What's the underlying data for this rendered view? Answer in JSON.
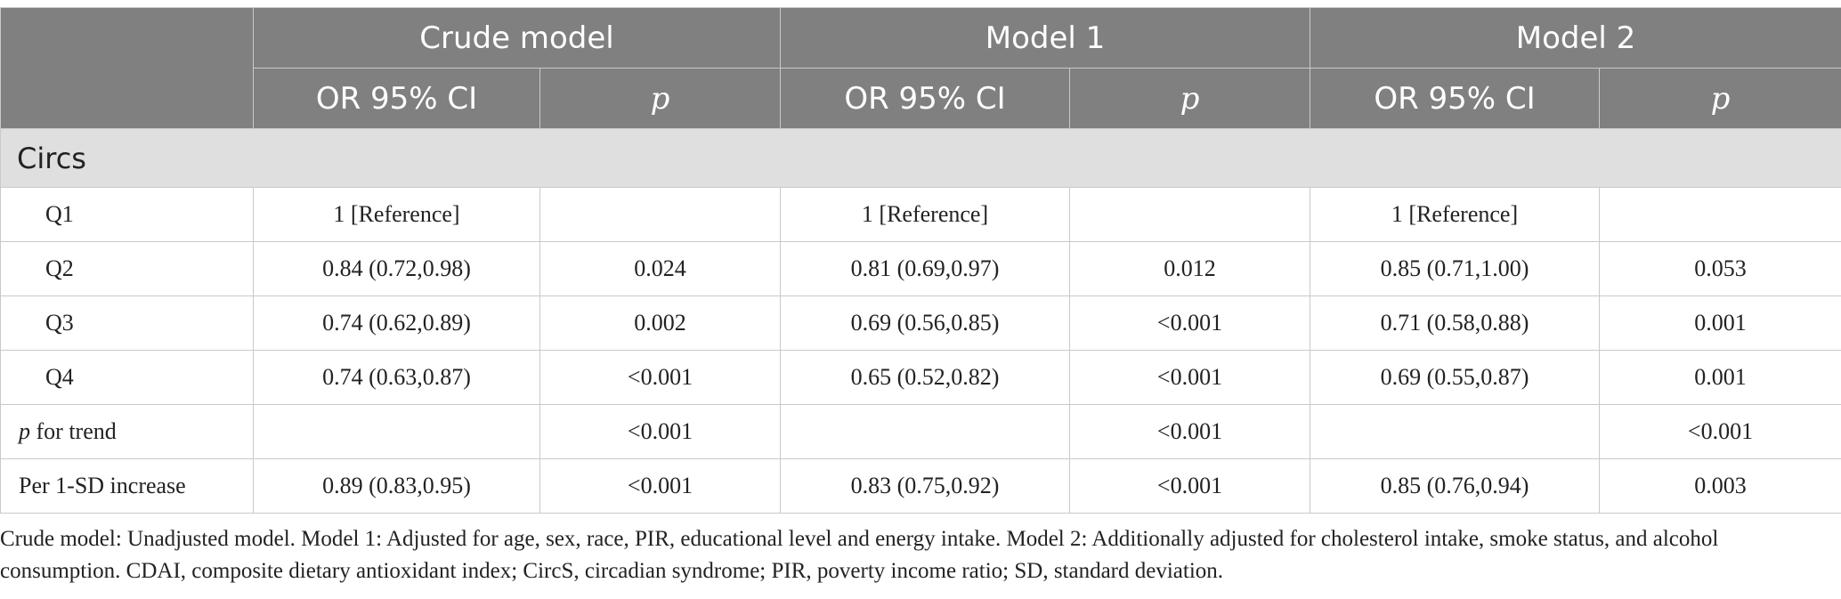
{
  "table": {
    "groups": [
      "Crude model",
      "Model 1",
      "Model 2"
    ],
    "subheaders": {
      "or_ci": "OR 95% CI",
      "p": "p"
    },
    "section": "Circs",
    "rows": [
      {
        "label": "Q1",
        "cells": [
          "1 [Reference]",
          "",
          "1 [Reference]",
          "",
          "1 [Reference]",
          ""
        ]
      },
      {
        "label": "Q2",
        "cells": [
          "0.84 (0.72,0.98)",
          "0.024",
          "0.81 (0.69,0.97)",
          "0.012",
          "0.85 (0.71,1.00)",
          "0.053"
        ]
      },
      {
        "label": "Q3",
        "cells": [
          "0.74 (0.62,0.89)",
          "0.002",
          "0.69 (0.56,0.85)",
          "<0.001",
          "0.71 (0.58,0.88)",
          "0.001"
        ]
      },
      {
        "label": "Q4",
        "cells": [
          "0.74 (0.63,0.87)",
          "<0.001",
          "0.65 (0.52,0.82)",
          "<0.001",
          "0.69 (0.55,0.87)",
          "0.001"
        ]
      },
      {
        "label_ital": "p",
        "label_rest": " for trend",
        "cells": [
          "",
          "<0.001",
          "",
          "<0.001",
          "",
          "<0.001"
        ]
      },
      {
        "label": "Per 1-SD increase",
        "cells": [
          "0.89 (0.83,0.95)",
          "<0.001",
          "0.83 (0.75,0.92)",
          "<0.001",
          "0.85 (0.76,0.94)",
          "0.003"
        ]
      }
    ]
  },
  "footnote": "Crude model: Unadjusted model. Model 1: Adjusted for age, sex, race, PIR, educational level and energy intake. Model 2: Additionally adjusted for cholesterol intake, smoke status, and alcohol consumption. CDAI, composite dietary antioxidant index; CircS, circadian syndrome; PIR, poverty income ratio; SD, standard deviation."
}
